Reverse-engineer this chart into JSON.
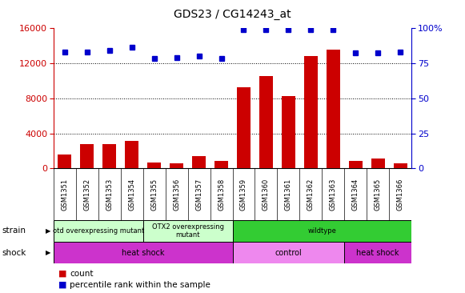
{
  "title": "GDS23 / CG14243_at",
  "samples": [
    "GSM1351",
    "GSM1352",
    "GSM1353",
    "GSM1354",
    "GSM1355",
    "GSM1356",
    "GSM1357",
    "GSM1358",
    "GSM1359",
    "GSM1360",
    "GSM1361",
    "GSM1362",
    "GSM1363",
    "GSM1364",
    "GSM1365",
    "GSM1366"
  ],
  "counts": [
    1600,
    2800,
    2800,
    3100,
    700,
    600,
    1400,
    900,
    9200,
    10500,
    8200,
    12800,
    13500,
    900,
    1100,
    600
  ],
  "percentiles": [
    83,
    83,
    84,
    86,
    78,
    79,
    80,
    78,
    99,
    99,
    99,
    99,
    99,
    82,
    82,
    83
  ],
  "ylim_left": [
    0,
    16000
  ],
  "ylim_right": [
    0,
    100
  ],
  "yticks_left": [
    0,
    4000,
    8000,
    12000,
    16000
  ],
  "yticks_right": [
    0,
    25,
    50,
    75,
    100
  ],
  "ytick_labels_right": [
    "0",
    "25",
    "50",
    "75",
    "100%"
  ],
  "bar_color": "#cc0000",
  "dot_color": "#0000cc",
  "strain_groups": [
    {
      "label": "otd overexpressing mutant",
      "start": 0,
      "end": 4,
      "color": "#ccffcc"
    },
    {
      "label": "OTX2 overexpressing\nmutant",
      "start": 4,
      "end": 8,
      "color": "#ccffcc"
    },
    {
      "label": "wildtype",
      "start": 8,
      "end": 16,
      "color": "#33cc33"
    }
  ],
  "shock_groups": [
    {
      "label": "heat shock",
      "start": 0,
      "end": 8,
      "color": "#cc33cc"
    },
    {
      "label": "control",
      "start": 8,
      "end": 13,
      "color": "#ee88ee"
    },
    {
      "label": "heat shock",
      "start": 13,
      "end": 16,
      "color": "#cc33cc"
    }
  ],
  "strain_label": "strain",
  "shock_label": "shock",
  "legend_items": [
    {
      "color": "#cc0000",
      "label": "count"
    },
    {
      "color": "#0000cc",
      "label": "percentile rank within the sample"
    }
  ],
  "bg_color": "#ffffff",
  "xtick_bg": "#cccccc"
}
